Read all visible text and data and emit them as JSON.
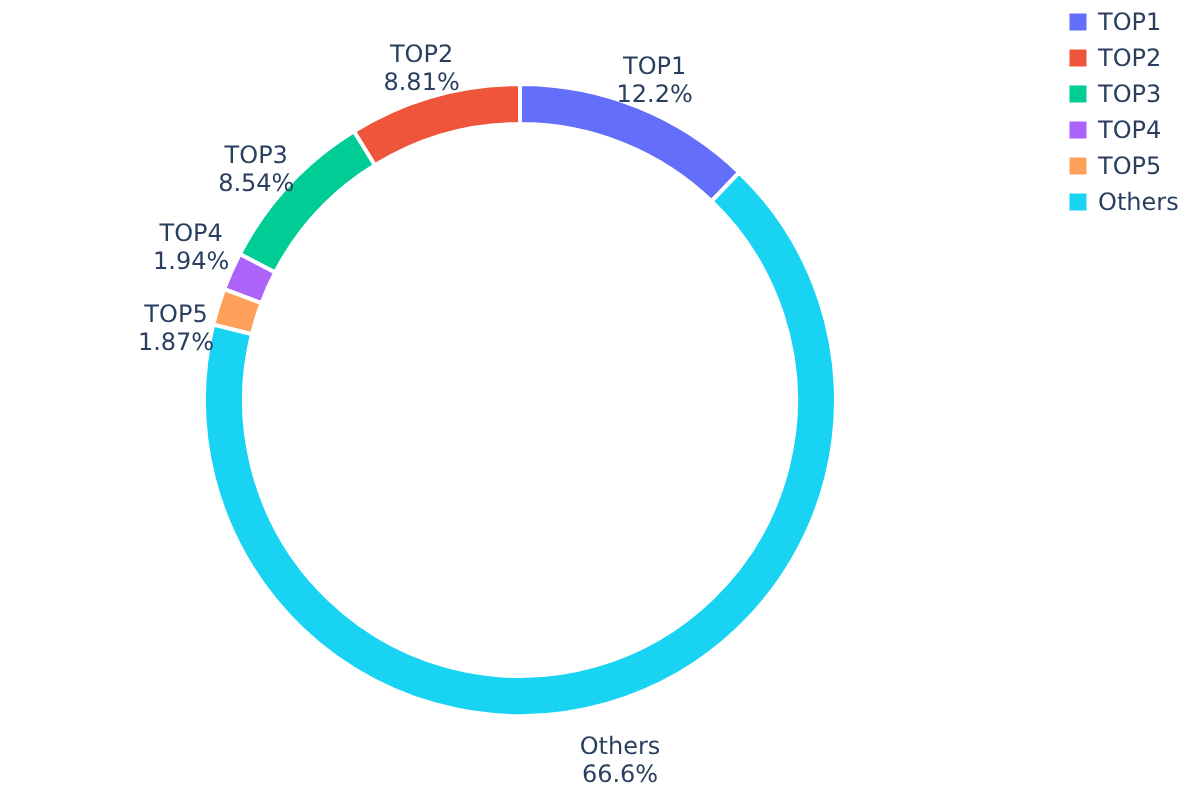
{
  "chart_data": {
    "type": "donut",
    "categories": [
      "TOP1",
      "TOP2",
      "TOP3",
      "TOP4",
      "TOP5",
      "Others"
    ],
    "values": [
      12.2,
      8.81,
      8.54,
      1.94,
      1.87,
      66.6
    ],
    "colors": [
      "#636efa",
      "#ef553b",
      "#00cc96",
      "#ab63fa",
      "#ffa15a",
      "#19d3f3"
    ],
    "value_labels": [
      "12.2%",
      "8.81%",
      "8.54%",
      "1.94%",
      "1.87%",
      "66.6%"
    ],
    "legend": "top right"
  }
}
